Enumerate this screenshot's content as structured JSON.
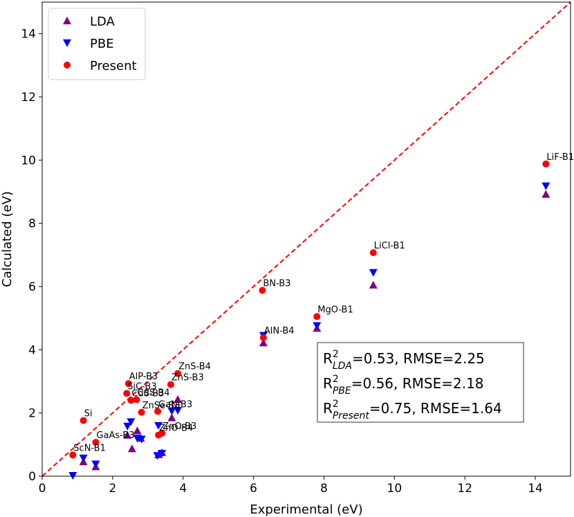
{
  "chart_data": {
    "type": "scatter",
    "xlabel": "Experimental (eV)",
    "ylabel": "Calculated (eV)",
    "xlim": [
      0,
      15
    ],
    "ylim": [
      0,
      15
    ],
    "x_ticks": [
      0,
      2,
      4,
      6,
      8,
      10,
      12,
      14
    ],
    "y_ticks": [
      0,
      2,
      4,
      6,
      8,
      10,
      12,
      14
    ],
    "diagonal": "y = x (red dashed)",
    "legend": {
      "position": "top-left",
      "entries": [
        {
          "name": "LDA",
          "marker": "triangle-up",
          "color": "#800080"
        },
        {
          "name": "PBE",
          "marker": "triangle-down",
          "color": "#0000ff"
        },
        {
          "name": "Present",
          "marker": "circle",
          "color": "#ff0000"
        }
      ]
    },
    "colors": {
      "LDA": "#800080",
      "PBE": "#0000ff",
      "Present": "#ff0000",
      "diagonal": "#ff0000"
    },
    "series": [
      {
        "name": "LDA",
        "points": [
          {
            "x": 1.17,
            "y": 0.46
          },
          {
            "x": 1.52,
            "y": 0.3
          },
          {
            "x": 2.42,
            "y": 1.3
          },
          {
            "x": 2.55,
            "y": 0.87
          },
          {
            "x": 2.7,
            "y": 1.44
          },
          {
            "x": 2.8,
            "y": 1.2
          },
          {
            "x": 3.3,
            "y": 0.68
          },
          {
            "x": 3.4,
            "y": 0.75
          },
          {
            "x": 3.68,
            "y": 1.85
          },
          {
            "x": 3.85,
            "y": 2.43
          },
          {
            "x": 6.28,
            "y": 4.22
          },
          {
            "x": 7.8,
            "y": 4.68
          },
          {
            "x": 9.4,
            "y": 6.05
          },
          {
            "x": 14.3,
            "y": 8.92
          }
        ]
      },
      {
        "name": "PBE",
        "points": [
          {
            "x": 0.87,
            "y": 0.02
          },
          {
            "x": 1.17,
            "y": 0.57
          },
          {
            "x": 1.52,
            "y": 0.38
          },
          {
            "x": 2.42,
            "y": 1.58
          },
          {
            "x": 2.52,
            "y": 1.72
          },
          {
            "x": 2.7,
            "y": 1.2
          },
          {
            "x": 2.82,
            "y": 1.17
          },
          {
            "x": 3.27,
            "y": 0.65
          },
          {
            "x": 3.3,
            "y": 1.6
          },
          {
            "x": 3.4,
            "y": 0.72
          },
          {
            "x": 3.68,
            "y": 2.06
          },
          {
            "x": 3.85,
            "y": 2.08
          },
          {
            "x": 6.28,
            "y": 4.45
          },
          {
            "x": 7.8,
            "y": 4.76
          },
          {
            "x": 9.4,
            "y": 6.44
          },
          {
            "x": 14.3,
            "y": 9.18
          }
        ]
      },
      {
        "name": "Present",
        "points": [
          {
            "x": 0.87,
            "y": 0.67,
            "label": "ScN-B1"
          },
          {
            "x": 1.17,
            "y": 1.76,
            "label": "Si"
          },
          {
            "x": 1.52,
            "y": 1.07,
            "label": "GaAs-B3"
          },
          {
            "x": 2.4,
            "y": 2.62,
            "label": "SiC-B3"
          },
          {
            "x": 2.45,
            "y": 2.93,
            "label": "AlP-B3"
          },
          {
            "x": 2.52,
            "y": 2.4,
            "label": "CdS-B3"
          },
          {
            "x": 2.68,
            "y": 2.42,
            "label": "CdS-B4"
          },
          {
            "x": 2.82,
            "y": 2.02,
            "label": "ZnSe-B3"
          },
          {
            "x": 3.28,
            "y": 2.05,
            "label": "GaN-B3"
          },
          {
            "x": 3.3,
            "y": 1.3,
            "label": "ZnO-B4"
          },
          {
            "x": 3.4,
            "y": 1.36,
            "label": "ZnO-B3"
          },
          {
            "x": 3.65,
            "y": 2.9,
            "label": "ZnS-B3"
          },
          {
            "x": 3.85,
            "y": 3.25,
            "label": "ZnS-B4"
          },
          {
            "x": 6.25,
            "y": 5.88,
            "label": "BN-B3"
          },
          {
            "x": 6.28,
            "y": 4.38,
            "label": "AlN-B4"
          },
          {
            "x": 7.8,
            "y": 5.05,
            "label": "MgO-B1"
          },
          {
            "x": 9.4,
            "y": 7.07,
            "label": "LiCl-B1"
          },
          {
            "x": 14.3,
            "y": 9.88,
            "label": "LiF-B1"
          }
        ]
      }
    ],
    "stats": [
      {
        "base": "R",
        "sup": "2",
        "sub": "LDA",
        "rest": "=0.53, RMSE=2.25"
      },
      {
        "base": "R",
        "sup": "2",
        "sub": "PBE",
        "rest": "=0.56, RMSE=2.18"
      },
      {
        "base": "R",
        "sup": "2",
        "sub": "Present",
        "rest": "=0.75, RMSE=1.64"
      }
    ],
    "stats_position": "lower-right"
  }
}
